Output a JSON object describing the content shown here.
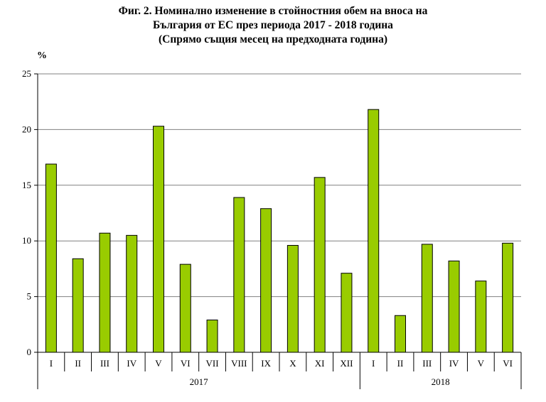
{
  "chart_data": {
    "type": "bar",
    "title_lines": [
      "Фиг. 2. Номинално изменение в стойностния обем на вноса на",
      "България от ЕС през периода 2017 - 2018 година",
      "(Спрямо същия месец на предходната година)"
    ],
    "ylabel": "%",
    "ylim": [
      0,
      25
    ],
    "yticks": [
      0,
      5,
      10,
      15,
      20,
      25
    ],
    "categories": [
      "I",
      "II",
      "III",
      "IV",
      "V",
      "VI",
      "VII",
      "VIII",
      "IX",
      "X",
      "XI",
      "XII",
      "I",
      "II",
      "III",
      "IV",
      "V",
      "VI"
    ],
    "groups": [
      {
        "label": "2017",
        "count": 12
      },
      {
        "label": "2018",
        "count": 6
      }
    ],
    "series": [
      {
        "values": [
          16.9,
          8.4,
          10.7,
          10.5,
          20.3,
          7.9,
          2.9,
          13.9,
          12.9,
          9.6,
          15.7,
          7.1,
          21.8,
          3.3,
          9.7,
          8.2,
          6.4,
          9.8
        ]
      }
    ],
    "bar_color": "#99cc00",
    "grid": true
  }
}
